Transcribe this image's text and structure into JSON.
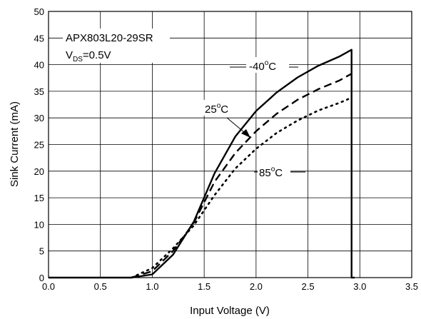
{
  "chart_data": {
    "type": "line",
    "title": "",
    "xlabel": "Input Voltage (V)",
    "ylabel": "Sink Current (mA)",
    "xlim": [
      0,
      3.5
    ],
    "ylim": [
      0,
      50
    ],
    "xticks": [
      "0.0",
      "0.5",
      "1.0",
      "1.5",
      "2.0",
      "2.5",
      "3.0",
      "3.5"
    ],
    "yticks": [
      "0",
      "5",
      "10",
      "15",
      "20",
      "25",
      "30",
      "35",
      "40",
      "45",
      "50"
    ],
    "grid": true,
    "annotations": {
      "device": "APX803L20-29SR",
      "vds_main": "V",
      "vds_sub": "DS",
      "vds_value": "=0.5V"
    },
    "series": [
      {
        "name": "-40°C",
        "label_main": "-40",
        "label_sup": "o",
        "label_unit": "C",
        "style": "solid",
        "x": [
          0,
          0.8,
          1.0,
          1.2,
          1.4,
          1.6,
          1.8,
          2.0,
          2.2,
          2.4,
          2.6,
          2.8,
          2.92,
          2.92,
          2.95
        ],
        "y": [
          0,
          0,
          0.6,
          4.3,
          10.5,
          19.6,
          26.5,
          31.3,
          34.8,
          37.6,
          39.8,
          41.5,
          42.8,
          0,
          0
        ]
      },
      {
        "name": "25°C",
        "label_main": "25",
        "label_sup": "o",
        "label_unit": "C",
        "style": "dashed",
        "x": [
          0.8,
          1.0,
          1.2,
          1.4,
          1.6,
          1.8,
          2.0,
          2.2,
          2.4,
          2.6,
          2.8,
          2.92
        ],
        "y": [
          0,
          1.2,
          5.0,
          10.3,
          18.0,
          23.4,
          27.5,
          30.8,
          33.4,
          35.4,
          37.0,
          38.3
        ]
      },
      {
        "name": "85°C",
        "label_main": "85",
        "label_sup": "o",
        "label_unit": "C",
        "style": "dotted",
        "x": [
          0.8,
          1.0,
          1.2,
          1.4,
          1.6,
          1.8,
          2.0,
          2.2,
          2.4,
          2.6,
          2.8,
          2.92
        ],
        "y": [
          0,
          1.8,
          5.5,
          9.8,
          15.5,
          20.5,
          24.2,
          27.2,
          29.5,
          31.4,
          32.8,
          33.8
        ]
      }
    ]
  }
}
